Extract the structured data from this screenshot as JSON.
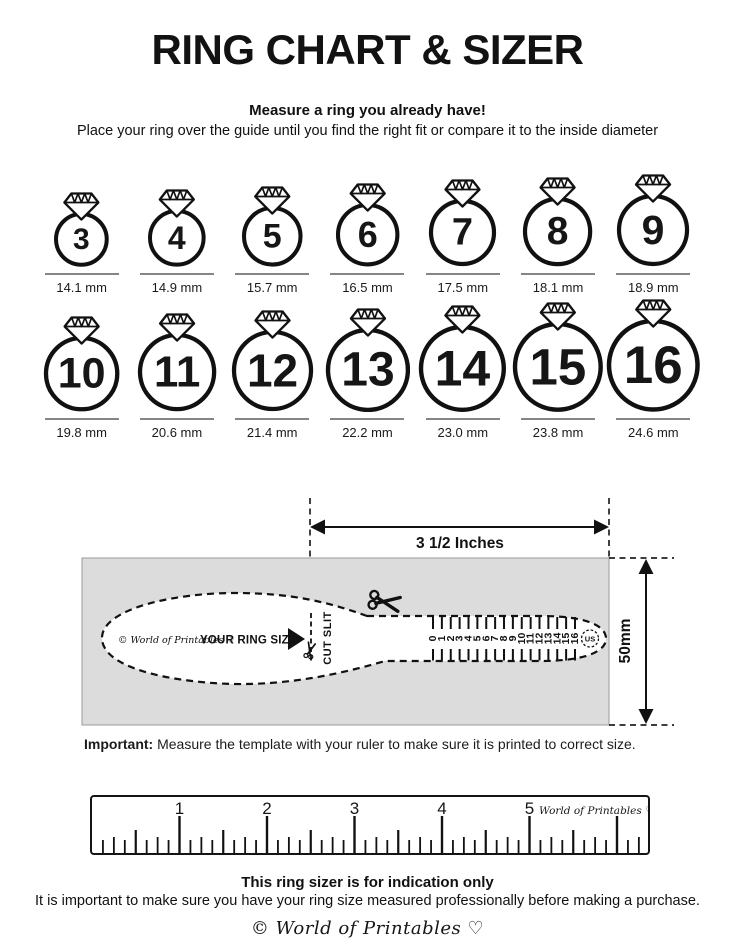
{
  "page": {
    "background": "#ffffff",
    "ink": "#111111",
    "panel_gray": "#dcdcdc",
    "underline_gray": "#858585"
  },
  "header": {
    "title": "RING CHART & SIZER",
    "tagline_bold": "Measure a ring you already have!",
    "tagline": "Place your ring over the guide until you find the right fit or compare it to the inside diameter"
  },
  "ring_chart": {
    "rows": [
      {
        "rings": [
          {
            "size": "3",
            "diameter": "14.1 mm"
          },
          {
            "size": "4",
            "diameter": "14.9 mm"
          },
          {
            "size": "5",
            "diameter": "15.7 mm"
          },
          {
            "size": "6",
            "diameter": "16.5 mm"
          },
          {
            "size": "7",
            "diameter": "17.5 mm"
          },
          {
            "size": "8",
            "diameter": "18.1 mm"
          },
          {
            "size": "9",
            "diameter": "18.9 mm"
          }
        ]
      },
      {
        "rings": [
          {
            "size": "10",
            "diameter": "19.8 mm"
          },
          {
            "size": "11",
            "diameter": "20.6 mm"
          },
          {
            "size": "12",
            "diameter": "21.4 mm"
          },
          {
            "size": "13",
            "diameter": "22.2 mm"
          },
          {
            "size": "14",
            "diameter": "23.0 mm"
          },
          {
            "size": "15",
            "diameter": "23.8 mm"
          },
          {
            "size": "16",
            "diameter": "24.6 mm"
          }
        ]
      }
    ]
  },
  "sizer": {
    "width_label": "3 1/2 Inches",
    "height_label": "50mm",
    "brand": "© World of Printables ♡",
    "size_label": "YOUR RING SIZE",
    "cut_slit_label": "CUT SLIT",
    "scale_numbers": [
      "0",
      "1",
      "2",
      "3",
      "4",
      "5",
      "6",
      "7",
      "8",
      "9",
      "10",
      "11",
      "12",
      "13",
      "14",
      "15",
      "16"
    ],
    "scale_unit": "US"
  },
  "important": {
    "label": "Important:",
    "text": " Measure the template with your ruler to make sure it is printed to correct size."
  },
  "ruler": {
    "inch_labels": [
      "1",
      "2",
      "3",
      "4",
      "5"
    ],
    "brand": "World of Printables ♡"
  },
  "footer": {
    "bold_line": "This ring sizer is for indication only",
    "line": "It is important to make sure you have your ring size measured professionally before making a purchase.",
    "brand": "© World of Printables ♡"
  },
  "icons": {
    "ring": "diamond-ring-icon",
    "scissors": "scissors-icon",
    "pointer": "triangle-pointer-icon",
    "dimension_arrow": "dimension-arrow-icon"
  }
}
